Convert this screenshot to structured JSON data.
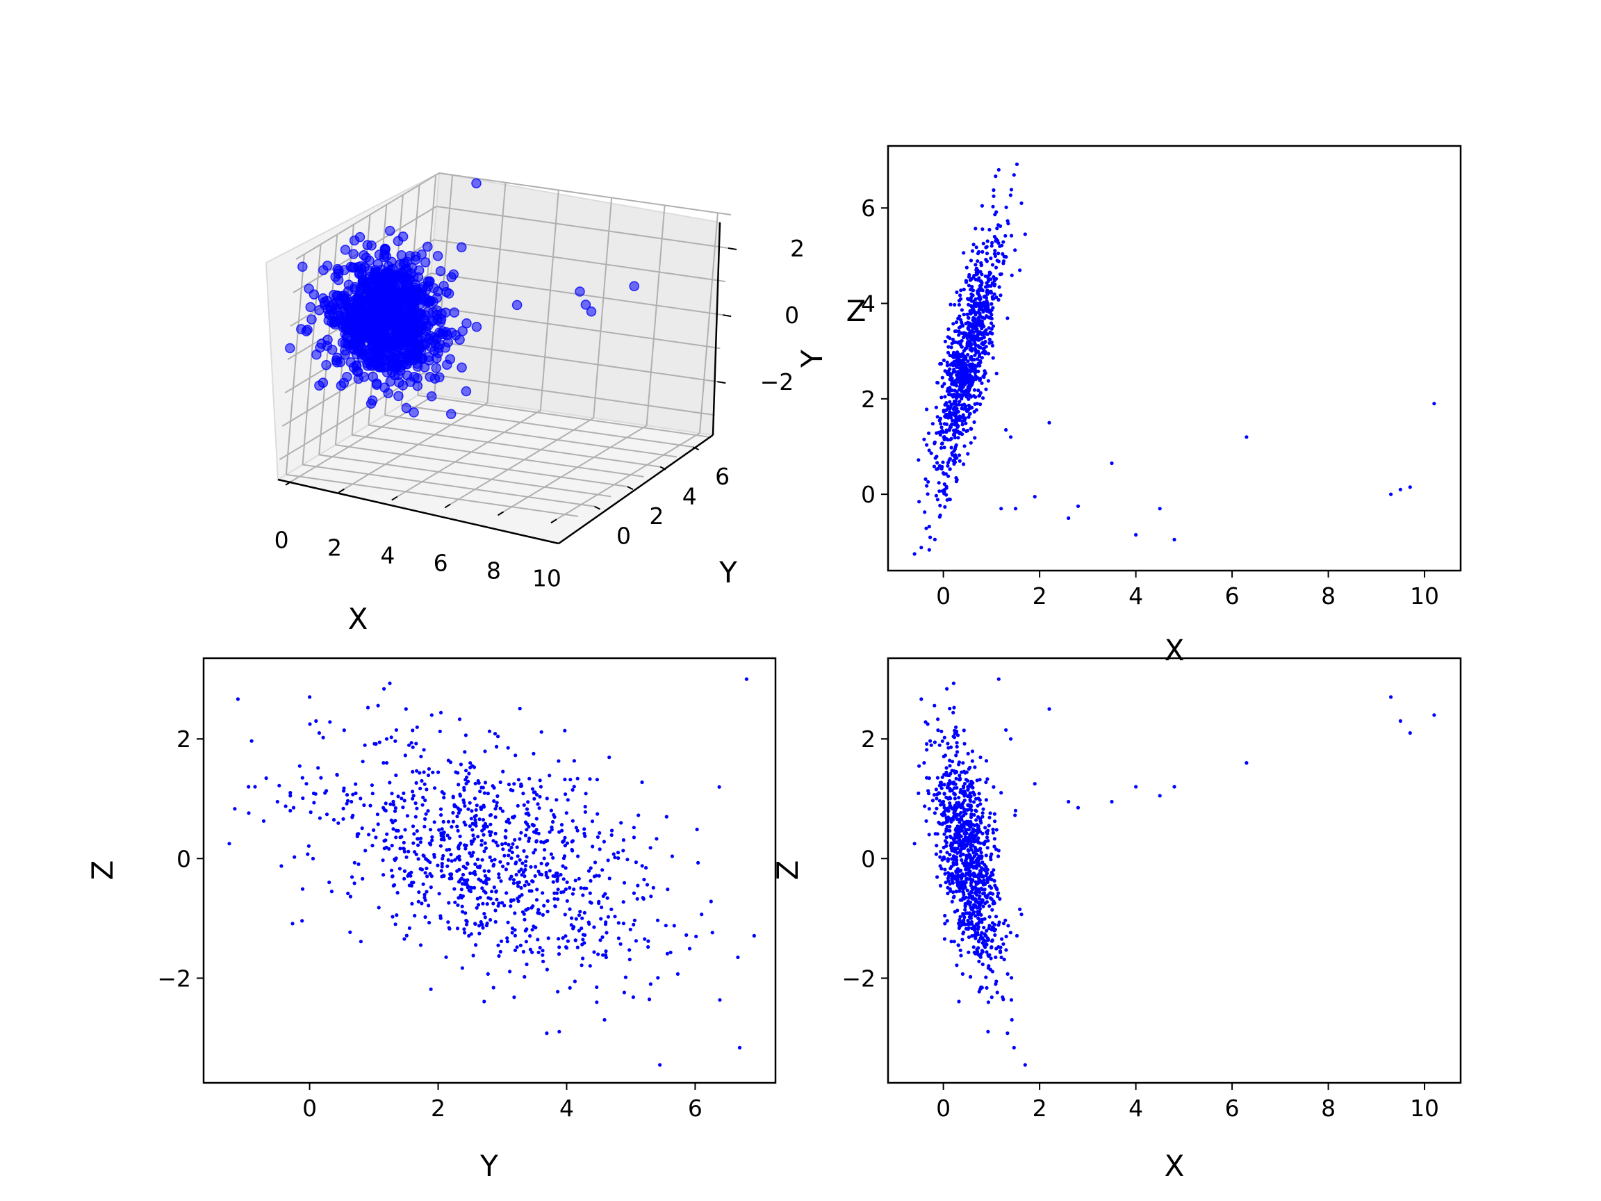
{
  "figure": {
    "background": "#ffffff",
    "point_color": "#0000ff"
  },
  "chart_data": [
    {
      "type": "scatter",
      "projection": "3d",
      "xlabel": "X",
      "ylabel": "Y",
      "zlabel": "Z",
      "x_ticks": [
        "0",
        "2",
        "4",
        "6",
        "8",
        "10"
      ],
      "y_ticks": [
        "0",
        "2",
        "4",
        "6"
      ],
      "z_ticks": [
        "−2",
        "0",
        "2"
      ],
      "xlim": [
        -0.5,
        10.5
      ],
      "ylim": [
        -1.5,
        7.2
      ],
      "zlim": [
        -3.6,
        3.0
      ],
      "grid": true,
      "point_count": 1000,
      "distribution": {
        "x": {
          "center": 0.5,
          "spread": 0.35
        },
        "y": {
          "center": 2.8,
          "spread": 1.3
        },
        "z": {
          "center": 0.0,
          "spread": 1.0
        },
        "note_xy_correlation": "Y increases with X inside the main cluster"
      },
      "outliers": [
        {
          "x": 10.2,
          "y": 1.9,
          "z": 2.4
        },
        {
          "x": 9.7,
          "y": 0.15,
          "z": 2.1
        },
        {
          "x": 9.5,
          "y": 0.1,
          "z": 2.3
        },
        {
          "x": 9.3,
          "y": 0.0,
          "z": 2.7
        },
        {
          "x": 6.3,
          "y": 1.2,
          "z": 1.6
        },
        {
          "x": 4.8,
          "y": -0.95,
          "z": 1.2
        },
        {
          "x": 4.5,
          "y": -0.3,
          "z": 1.05
        },
        {
          "x": 4.0,
          "y": -0.85,
          "z": 1.2
        },
        {
          "x": 3.5,
          "y": 0.65,
          "z": 0.95
        },
        {
          "x": 2.8,
          "y": -0.25,
          "z": 0.85
        },
        {
          "x": 2.6,
          "y": -0.5,
          "z": 0.95
        },
        {
          "x": 2.2,
          "y": 1.5,
          "z": 2.5
        },
        {
          "x": 1.9,
          "y": -0.05,
          "z": 1.25
        },
        {
          "x": 1.5,
          "y": -0.3,
          "z": 0.8
        },
        {
          "x": 1.4,
          "y": 1.2,
          "z": 2.0
        },
        {
          "x": 1.3,
          "y": 1.35,
          "z": 2.15
        },
        {
          "x": 1.2,
          "y": -0.3,
          "z": 1.1
        },
        {
          "x": 1.15,
          "y": 6.8,
          "z": 3.0
        },
        {
          "x": 1.7,
          "y": 5.45,
          "z": -3.45
        },
        {
          "x": -0.6,
          "y": -1.25,
          "z": 0.25
        },
        {
          "x": -0.4,
          "y": 1.15,
          "z": 1.6
        }
      ]
    },
    {
      "type": "scatter",
      "xlabel": "X",
      "ylabel": "Y",
      "x_ticks": [
        "0",
        "2",
        "4",
        "6",
        "8",
        "10"
      ],
      "y_ticks": [
        "0",
        "2",
        "4",
        "6"
      ],
      "xlim": [
        -1.15,
        10.75
      ],
      "ylim": [
        -1.6,
        7.3
      ],
      "marker_size": "small"
    },
    {
      "type": "scatter",
      "xlabel": "Y",
      "ylabel": "Z",
      "x_ticks": [
        "0",
        "2",
        "4",
        "6"
      ],
      "y_ticks": [
        "−2",
        "0",
        "2"
      ],
      "xlim": [
        -1.65,
        7.25
      ],
      "ylim": [
        -3.75,
        3.35
      ],
      "marker_size": "small"
    },
    {
      "type": "scatter",
      "xlabel": "X",
      "ylabel": "Z",
      "x_ticks": [
        "0",
        "2",
        "4",
        "6",
        "8",
        "10"
      ],
      "y_ticks": [
        "−2",
        "0",
        "2"
      ],
      "xlim": [
        -1.15,
        10.75
      ],
      "ylim": [
        -3.75,
        3.35
      ],
      "marker_size": "small"
    }
  ]
}
